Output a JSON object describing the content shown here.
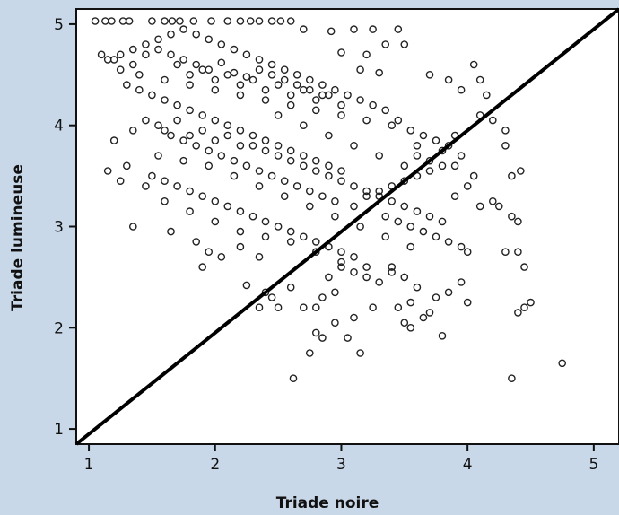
{
  "chart_data": {
    "type": "scatter",
    "title": "",
    "xlabel": "Triade noire",
    "ylabel": "Triade lumineuse",
    "xlim": [
      0.9,
      5.2
    ],
    "ylim": [
      0.85,
      5.15
    ],
    "xticks": [
      "1",
      "2",
      "3",
      "4",
      "5"
    ],
    "yticks": [
      "1",
      "2",
      "3",
      "4",
      "5"
    ],
    "grid": false,
    "reference_line": {
      "from": [
        0.9,
        0.85
      ],
      "to": [
        5.2,
        5.15
      ],
      "color": "#000000"
    },
    "series": [
      {
        "marker": "open-circle",
        "color": "#222222",
        "points": [
          [
            1.05,
            5.03
          ],
          [
            1.13,
            5.03
          ],
          [
            1.18,
            5.03
          ],
          [
            1.27,
            5.03
          ],
          [
            1.32,
            5.03
          ],
          [
            1.5,
            5.03
          ],
          [
            1.6,
            5.03
          ],
          [
            1.66,
            5.03
          ],
          [
            1.72,
            5.03
          ],
          [
            1.83,
            5.03
          ],
          [
            1.97,
            5.03
          ],
          [
            2.1,
            5.03
          ],
          [
            2.2,
            5.03
          ],
          [
            2.28,
            5.03
          ],
          [
            2.35,
            5.03
          ],
          [
            2.45,
            5.03
          ],
          [
            2.52,
            5.03
          ],
          [
            2.6,
            5.03
          ],
          [
            2.7,
            4.95
          ],
          [
            2.92,
            4.93
          ],
          [
            3.1,
            4.95
          ],
          [
            3.25,
            4.95
          ],
          [
            3.45,
            4.95
          ],
          [
            3.35,
            4.8
          ],
          [
            3.5,
            4.8
          ],
          [
            3.0,
            4.72
          ],
          [
            3.2,
            4.7
          ],
          [
            3.15,
            4.55
          ],
          [
            3.3,
            4.52
          ],
          [
            3.7,
            4.5
          ],
          [
            3.85,
            4.45
          ],
          [
            4.05,
            4.6
          ],
          [
            4.1,
            4.45
          ],
          [
            3.95,
            4.35
          ],
          [
            4.15,
            4.3
          ],
          [
            1.1,
            4.7
          ],
          [
            1.2,
            4.65
          ],
          [
            1.25,
            4.55
          ],
          [
            1.35,
            4.6
          ],
          [
            1.45,
            4.7
          ],
          [
            1.55,
            4.75
          ],
          [
            1.65,
            4.7
          ],
          [
            1.75,
            4.65
          ],
          [
            1.85,
            4.6
          ],
          [
            1.95,
            4.55
          ],
          [
            2.05,
            4.62
          ],
          [
            2.15,
            4.52
          ],
          [
            2.25,
            4.48
          ],
          [
            2.35,
            4.55
          ],
          [
            2.45,
            4.5
          ],
          [
            2.55,
            4.45
          ],
          [
            2.65,
            4.4
          ],
          [
            2.75,
            4.35
          ],
          [
            2.85,
            4.3
          ],
          [
            1.3,
            4.4
          ],
          [
            1.4,
            4.35
          ],
          [
            1.5,
            4.3
          ],
          [
            1.6,
            4.25
          ],
          [
            1.7,
            4.2
          ],
          [
            1.8,
            4.15
          ],
          [
            1.9,
            4.1
          ],
          [
            2.0,
            4.05
          ],
          [
            2.1,
            4.0
          ],
          [
            2.2,
            3.95
          ],
          [
            2.3,
            3.9
          ],
          [
            2.4,
            3.85
          ],
          [
            2.5,
            3.8
          ],
          [
            2.6,
            3.75
          ],
          [
            2.7,
            3.7
          ],
          [
            2.8,
            3.65
          ],
          [
            2.9,
            3.6
          ],
          [
            3.0,
            3.55
          ],
          [
            1.2,
            3.85
          ],
          [
            1.35,
            3.95
          ],
          [
            1.45,
            4.05
          ],
          [
            1.55,
            4.0
          ],
          [
            1.65,
            3.9
          ],
          [
            1.75,
            3.85
          ],
          [
            1.85,
            3.8
          ],
          [
            1.95,
            3.75
          ],
          [
            2.05,
            3.7
          ],
          [
            2.15,
            3.65
          ],
          [
            2.25,
            3.6
          ],
          [
            2.35,
            3.55
          ],
          [
            2.45,
            3.5
          ],
          [
            2.55,
            3.45
          ],
          [
            2.65,
            3.4
          ],
          [
            2.75,
            3.35
          ],
          [
            2.85,
            3.3
          ],
          [
            2.95,
            3.25
          ],
          [
            1.3,
            3.6
          ],
          [
            1.5,
            3.5
          ],
          [
            1.6,
            3.45
          ],
          [
            1.7,
            3.4
          ],
          [
            1.8,
            3.35
          ],
          [
            1.9,
            3.3
          ],
          [
            2.0,
            3.25
          ],
          [
            2.1,
            3.2
          ],
          [
            2.2,
            3.15
          ],
          [
            2.3,
            3.1
          ],
          [
            2.4,
            3.05
          ],
          [
            2.5,
            3.0
          ],
          [
            2.6,
            2.95
          ],
          [
            2.7,
            2.9
          ],
          [
            2.8,
            2.85
          ],
          [
            2.9,
            2.8
          ],
          [
            3.0,
            2.75
          ],
          [
            3.1,
            2.7
          ],
          [
            1.35,
            3.0
          ],
          [
            1.65,
            2.95
          ],
          [
            1.85,
            2.85
          ],
          [
            1.95,
            2.75
          ],
          [
            1.9,
            2.6
          ],
          [
            2.05,
            2.7
          ],
          [
            2.2,
            2.8
          ],
          [
            2.35,
            2.7
          ],
          [
            2.25,
            2.42
          ],
          [
            2.4,
            2.35
          ],
          [
            2.35,
            2.2
          ],
          [
            2.5,
            2.2
          ],
          [
            2.6,
            2.4
          ],
          [
            2.7,
            2.2
          ],
          [
            2.8,
            2.2
          ],
          [
            2.85,
            2.3
          ],
          [
            2.9,
            2.5
          ],
          [
            2.95,
            2.35
          ],
          [
            3.0,
            2.6
          ],
          [
            3.1,
            2.55
          ],
          [
            3.2,
            2.5
          ],
          [
            3.3,
            2.45
          ],
          [
            3.4,
            2.6
          ],
          [
            3.5,
            2.5
          ],
          [
            3.6,
            2.4
          ],
          [
            3.55,
            2.25
          ],
          [
            3.45,
            2.2
          ],
          [
            3.25,
            2.2
          ],
          [
            3.1,
            2.1
          ],
          [
            2.95,
            2.05
          ],
          [
            2.8,
            1.95
          ],
          [
            2.85,
            1.9
          ],
          [
            2.75,
            1.75
          ],
          [
            3.05,
            1.9
          ],
          [
            3.15,
            1.75
          ],
          [
            2.62,
            1.5
          ],
          [
            3.5,
            2.05
          ],
          [
            3.55,
            2.0
          ],
          [
            3.65,
            2.1
          ],
          [
            3.7,
            2.15
          ],
          [
            3.8,
            1.92
          ],
          [
            3.85,
            2.35
          ],
          [
            3.75,
            2.3
          ],
          [
            3.95,
            2.45
          ],
          [
            4.0,
            2.25
          ],
          [
            4.3,
            2.75
          ],
          [
            4.4,
            2.75
          ],
          [
            4.45,
            2.6
          ],
          [
            4.45,
            2.2
          ],
          [
            4.4,
            2.15
          ],
          [
            4.5,
            2.25
          ],
          [
            4.35,
            1.5
          ],
          [
            4.75,
            1.65
          ],
          [
            3.1,
            3.2
          ],
          [
            3.2,
            3.3
          ],
          [
            3.3,
            3.35
          ],
          [
            3.4,
            3.4
          ],
          [
            3.5,
            3.45
          ],
          [
            3.6,
            3.5
          ],
          [
            3.7,
            3.55
          ],
          [
            3.8,
            3.6
          ],
          [
            3.9,
            3.6
          ],
          [
            3.35,
            3.1
          ],
          [
            3.45,
            3.05
          ],
          [
            3.55,
            3.0
          ],
          [
            3.65,
            2.95
          ],
          [
            3.75,
            2.9
          ],
          [
            3.85,
            2.85
          ],
          [
            3.95,
            2.8
          ],
          [
            4.0,
            2.75
          ],
          [
            4.1,
            3.2
          ],
          [
            4.05,
            3.5
          ],
          [
            4.2,
            3.25
          ],
          [
            4.25,
            3.2
          ],
          [
            4.35,
            3.5
          ],
          [
            4.42,
            3.55
          ],
          [
            4.35,
            3.1
          ],
          [
            4.4,
            3.05
          ],
          [
            4.3,
            3.8
          ],
          [
            4.3,
            3.95
          ],
          [
            4.2,
            4.05
          ],
          [
            4.1,
            4.1
          ],
          [
            3.85,
            3.8
          ],
          [
            3.9,
            3.9
          ],
          [
            3.95,
            3.7
          ],
          [
            3.75,
            3.85
          ],
          [
            3.65,
            3.9
          ],
          [
            3.55,
            3.95
          ],
          [
            3.45,
            4.05
          ],
          [
            3.35,
            4.15
          ],
          [
            3.25,
            4.2
          ],
          [
            3.15,
            4.25
          ],
          [
            3.05,
            4.3
          ],
          [
            2.95,
            4.35
          ],
          [
            2.85,
            4.4
          ],
          [
            2.75,
            4.45
          ],
          [
            2.65,
            4.5
          ],
          [
            2.55,
            4.55
          ],
          [
            2.45,
            4.6
          ],
          [
            2.35,
            4.65
          ],
          [
            2.25,
            4.7
          ],
          [
            2.15,
            4.75
          ],
          [
            2.05,
            4.8
          ],
          [
            1.95,
            4.85
          ],
          [
            1.85,
            4.9
          ],
          [
            1.75,
            4.95
          ],
          [
            1.65,
            4.9
          ],
          [
            1.55,
            4.85
          ],
          [
            1.45,
            4.8
          ],
          [
            1.35,
            4.75
          ],
          [
            1.25,
            4.7
          ],
          [
            1.15,
            4.65
          ],
          [
            1.4,
            4.5
          ],
          [
            1.6,
            4.45
          ],
          [
            1.8,
            4.4
          ],
          [
            2.0,
            4.35
          ],
          [
            2.2,
            4.3
          ],
          [
            2.4,
            4.25
          ],
          [
            2.6,
            4.2
          ],
          [
            2.8,
            4.15
          ],
          [
            3.0,
            4.1
          ],
          [
            3.2,
            4.05
          ],
          [
            3.4,
            4.0
          ],
          [
            3.6,
            3.8
          ],
          [
            3.8,
            3.75
          ],
          [
            1.7,
            4.05
          ],
          [
            1.9,
            3.95
          ],
          [
            2.1,
            3.9
          ],
          [
            2.3,
            3.8
          ],
          [
            2.5,
            3.7
          ],
          [
            2.7,
            3.6
          ],
          [
            2.9,
            3.5
          ],
          [
            3.1,
            3.4
          ],
          [
            3.3,
            3.3
          ],
          [
            3.5,
            3.2
          ],
          [
            3.7,
            3.1
          ],
          [
            1.55,
            3.7
          ],
          [
            1.75,
            3.65
          ],
          [
            1.95,
            3.6
          ],
          [
            2.15,
            3.5
          ],
          [
            2.35,
            3.4
          ],
          [
            2.55,
            3.3
          ],
          [
            2.75,
            3.2
          ],
          [
            2.95,
            3.1
          ],
          [
            3.15,
            3.0
          ],
          [
            3.35,
            2.9
          ],
          [
            3.55,
            2.8
          ],
          [
            1.6,
            3.25
          ],
          [
            1.8,
            3.15
          ],
          [
            2.0,
            3.05
          ],
          [
            2.2,
            2.95
          ],
          [
            2.4,
            2.9
          ],
          [
            2.6,
            2.85
          ],
          [
            2.8,
            2.75
          ],
          [
            3.0,
            2.65
          ],
          [
            3.2,
            2.6
          ],
          [
            3.4,
            2.55
          ],
          [
            1.45,
            3.4
          ],
          [
            1.25,
            3.45
          ],
          [
            1.15,
            3.55
          ],
          [
            2.45,
            2.3
          ],
          [
            1.8,
            4.5
          ],
          [
            2.0,
            4.45
          ],
          [
            2.2,
            4.4
          ],
          [
            2.4,
            4.35
          ],
          [
            2.6,
            4.3
          ],
          [
            2.8,
            4.25
          ],
          [
            3.0,
            4.2
          ],
          [
            1.7,
            4.6
          ],
          [
            1.9,
            4.55
          ],
          [
            2.1,
            4.5
          ],
          [
            2.3,
            4.45
          ],
          [
            2.5,
            4.4
          ],
          [
            2.7,
            4.35
          ],
          [
            2.9,
            4.3
          ],
          [
            1.6,
            3.95
          ],
          [
            1.8,
            3.9
          ],
          [
            2.0,
            3.85
          ],
          [
            2.2,
            3.8
          ],
          [
            2.4,
            3.75
          ],
          [
            2.6,
            3.65
          ],
          [
            2.8,
            3.55
          ],
          [
            3.0,
            3.45
          ],
          [
            3.2,
            3.35
          ],
          [
            3.4,
            3.25
          ],
          [
            3.6,
            3.15
          ],
          [
            3.8,
            3.05
          ],
          [
            3.9,
            3.3
          ],
          [
            4.0,
            3.4
          ],
          [
            3.7,
            3.65
          ],
          [
            3.6,
            3.7
          ],
          [
            3.5,
            3.6
          ],
          [
            3.3,
            3.7
          ],
          [
            3.1,
            3.8
          ],
          [
            2.9,
            3.9
          ],
          [
            2.7,
            4.0
          ],
          [
            2.5,
            4.1
          ]
        ]
      }
    ]
  }
}
